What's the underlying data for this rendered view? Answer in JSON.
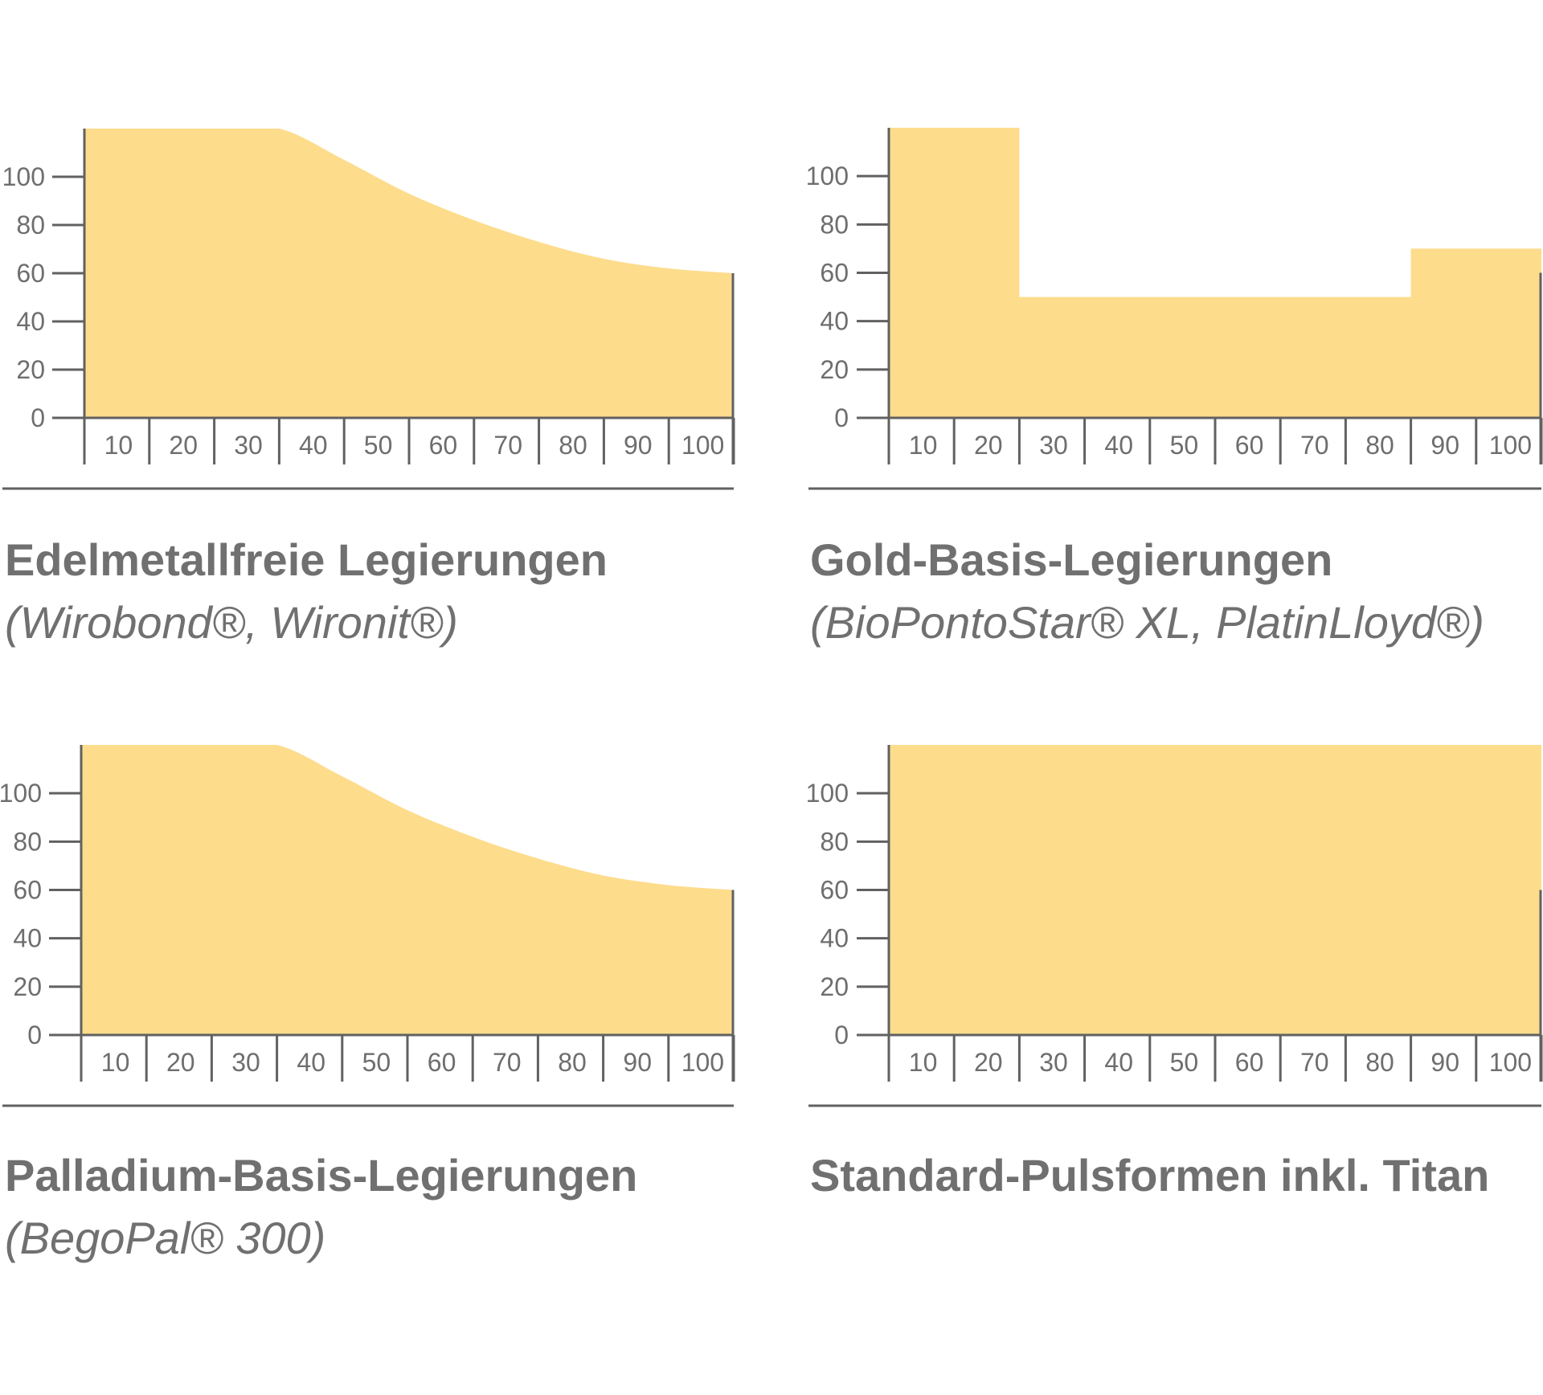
{
  "colors": {
    "fill": "#FDDC8C",
    "axis": "#616161",
    "text": "#6e6e6e"
  },
  "chart_data": [
    {
      "type": "area",
      "title": "Edelmetallfreie Legierungen",
      "subtitle": "(Wirobond®, Wironit®)",
      "x": [
        0,
        10,
        20,
        30,
        40,
        50,
        60,
        70,
        80,
        90,
        100
      ],
      "y": [
        120,
        120,
        120,
        120,
        107,
        93,
        82,
        73,
        66,
        62,
        60
      ],
      "xticks": [
        "10",
        "20",
        "30",
        "40",
        "50",
        "60",
        "70",
        "80",
        "90",
        "100"
      ],
      "yticks": [
        "0",
        "20",
        "40",
        "60",
        "80",
        "100"
      ],
      "xlim": [
        0,
        100
      ],
      "ylim": [
        0,
        120
      ],
      "curve": "smooth"
    },
    {
      "type": "area",
      "title": "Gold-Basis-Legierungen",
      "subtitle": "(BioPontoStar® XL, PlatinLloyd®)",
      "x": [
        0,
        20,
        20,
        80,
        80,
        100
      ],
      "y": [
        120,
        120,
        50,
        50,
        70,
        70
      ],
      "xticks": [
        "10",
        "20",
        "30",
        "40",
        "50",
        "60",
        "70",
        "80",
        "90",
        "100"
      ],
      "yticks": [
        "0",
        "20",
        "40",
        "60",
        "80",
        "100"
      ],
      "xlim": [
        0,
        100
      ],
      "ylim": [
        0,
        120
      ],
      "curve": "step"
    },
    {
      "type": "area",
      "title": "Palladium-Basis-Legierungen",
      "subtitle": "(BegoPal® 300)",
      "x": [
        0,
        10,
        20,
        30,
        40,
        50,
        60,
        70,
        80,
        90,
        100
      ],
      "y": [
        120,
        120,
        120,
        120,
        107,
        93,
        82,
        73,
        66,
        62,
        60
      ],
      "xticks": [
        "10",
        "20",
        "30",
        "40",
        "50",
        "60",
        "70",
        "80",
        "90",
        "100"
      ],
      "yticks": [
        "0",
        "20",
        "40",
        "60",
        "80",
        "100"
      ],
      "xlim": [
        0,
        100
      ],
      "ylim": [
        0,
        120
      ],
      "curve": "smooth"
    },
    {
      "type": "area",
      "title": "Standard-Pulsformen inkl. Titan",
      "subtitle": "",
      "x": [
        0,
        100
      ],
      "y": [
        120,
        120
      ],
      "xticks": [
        "10",
        "20",
        "30",
        "40",
        "50",
        "60",
        "70",
        "80",
        "90",
        "100"
      ],
      "yticks": [
        "0",
        "20",
        "40",
        "60",
        "80",
        "100"
      ],
      "xlim": [
        0,
        100
      ],
      "ylim": [
        0,
        120
      ],
      "curve": "step"
    }
  ]
}
